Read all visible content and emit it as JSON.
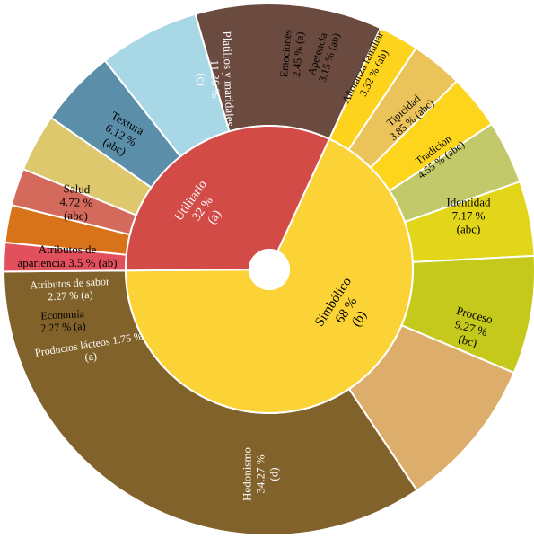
{
  "chart_data": {
    "type": "sunburst",
    "inner": [
      {
        "name": "Utilitario",
        "percent_label": "32 %",
        "group": "(a)",
        "value": 32,
        "color": "#d34b47",
        "text_color": "#ffffff"
      },
      {
        "name": "Simbólico",
        "percent_label": "68 %",
        "group": "(b)",
        "value": 68,
        "color": "#fcd336",
        "text_color": "#000000"
      }
    ],
    "outer": [
      {
        "name": "Platillos y maridajes",
        "percent_label": "11.36 %",
        "group": "(c)",
        "value": 11.36,
        "parent": "Utilitario",
        "color": "#6b4a3f",
        "text_color": "#ffffff"
      },
      {
        "name": "Textura",
        "percent_label": "6.12 %",
        "group": "(abc)",
        "value": 6.12,
        "parent": "Utilitario",
        "color": "#a8d7e6",
        "text_color": "#000000"
      },
      {
        "name": "Salud",
        "percent_label": "4.72 %",
        "group": "(abc)",
        "value": 4.72,
        "parent": "Utilitario",
        "color": "#5b8ea8",
        "text_color": "#000000"
      },
      {
        "name": "Atributos de apariencia",
        "percent_label": "3.5 %",
        "group": "(ab)",
        "value": 3.5,
        "parent": "Utilitario",
        "color": "#ddc86d",
        "text_color": "#000000"
      },
      {
        "name": "Atributos de sabor",
        "percent_label": "2.27 %",
        "group": "(a)",
        "value": 2.27,
        "parent": "Utilitario",
        "color": "#d46a5c",
        "text_color": "#ffffff"
      },
      {
        "name": "Economía",
        "percent_label": "2.27 %",
        "group": "(a)",
        "value": 2.27,
        "parent": "Utilitario",
        "color": "#d9731a",
        "text_color": "#000000"
      },
      {
        "name": "Productos lácteos",
        "percent_label": "1.75 %",
        "group": "(a)",
        "value": 1.75,
        "parent": "Utilitario",
        "color": "#e2505d",
        "text_color": "#ffffff"
      },
      {
        "name": "Hedonismo",
        "percent_label": "34.27 %",
        "group": "(d)",
        "value": 34.27,
        "parent": "Simbólico",
        "color": "#81622a",
        "text_color": "#ffffff"
      },
      {
        "name": "Proceso",
        "percent_label": "9.27 %",
        "group": "(bc)",
        "value": 9.27,
        "parent": "Simbólico",
        "color": "#ddae6b",
        "text_color": "#000000"
      },
      {
        "name": "Identidad",
        "percent_label": "7.17 %",
        "group": "(abc)",
        "value": 7.17,
        "parent": "Simbólico",
        "color": "#c5c91c",
        "text_color": "#000000"
      },
      {
        "name": "Tradición",
        "percent_label": "4.55 %",
        "group": "(abc)",
        "value": 4.55,
        "parent": "Simbólico",
        "color": "#e3d61a",
        "text_color": "#000000"
      },
      {
        "name": "Tipicidad",
        "percent_label": "3.85 %",
        "group": "(abc)",
        "value": 3.85,
        "parent": "Simbólico",
        "color": "#c2c96a",
        "text_color": "#000000"
      },
      {
        "name": "Añoranza familiar",
        "percent_label": "3.32 %",
        "group": "(ab)",
        "value": 3.32,
        "parent": "Simbólico",
        "color": "#fdd51c",
        "text_color": "#000000"
      },
      {
        "name": "Apetencia",
        "percent_label": "3.15 %",
        "group": "(ab)",
        "value": 3.15,
        "parent": "Simbólico",
        "color": "#eac35b",
        "text_color": "#000000"
      },
      {
        "name": "Emociones",
        "percent_label": "2.45 %",
        "group": "(a)",
        "value": 2.45,
        "parent": "Simbólico",
        "color": "#fdd31e",
        "text_color": "#000000"
      }
    ]
  }
}
